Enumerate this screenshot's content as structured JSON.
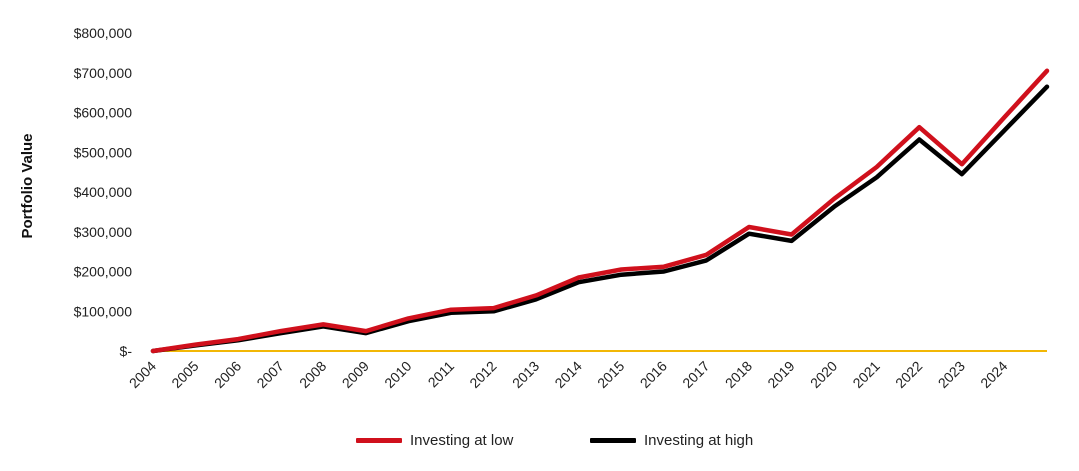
{
  "chart_data": {
    "type": "line",
    "x": [
      "2004",
      "2005",
      "2006",
      "2007",
      "2008",
      "2009",
      "2010",
      "2011",
      "2012",
      "2013",
      "2014",
      "2015",
      "2016",
      "2017",
      "2018",
      "2019",
      "2020",
      "2021",
      "2022",
      "2023",
      "2024",
      ""
    ],
    "xticks": [
      "2004",
      "2005",
      "2006",
      "2007",
      "2008",
      "2009",
      "2010",
      "2011",
      "2012",
      "2013",
      "2014",
      "2015",
      "2016",
      "2017",
      "2018",
      "2019",
      "2020",
      "2021",
      "2022",
      "2023",
      "2024"
    ],
    "series": [
      {
        "name": "Investing at low",
        "color": "#d0101c",
        "values": [
          0,
          16000,
          30000,
          50000,
          67000,
          50000,
          82000,
          104000,
          108000,
          140000,
          185000,
          205000,
          212000,
          242000,
          312000,
          293000,
          383000,
          463000,
          563000,
          470000,
          588000,
          705000
        ]
      },
      {
        "name": "Investing at high",
        "color": "#000000",
        "values": [
          0,
          14000,
          27000,
          45000,
          62000,
          45000,
          75000,
          96000,
          100000,
          130000,
          173000,
          192000,
          200000,
          228000,
          295000,
          277000,
          363000,
          437000,
          532000,
          445000,
          555000,
          665000
        ]
      }
    ],
    "ylim": [
      0,
      800000
    ],
    "yticks": [
      0,
      100000,
      200000,
      300000,
      400000,
      500000,
      600000,
      700000,
      800000
    ],
    "ytick_labels": [
      "$-",
      "$100,000",
      "$200,000",
      "$300,000",
      "$400,000",
      "$500,000",
      "$600,000",
      "$700,000",
      "$800,000"
    ],
    "ylabel": "Portfolio Value",
    "xlabel": "",
    "baseline_color": "#f2b705",
    "grid": false,
    "legend_position": "bottom-center"
  }
}
